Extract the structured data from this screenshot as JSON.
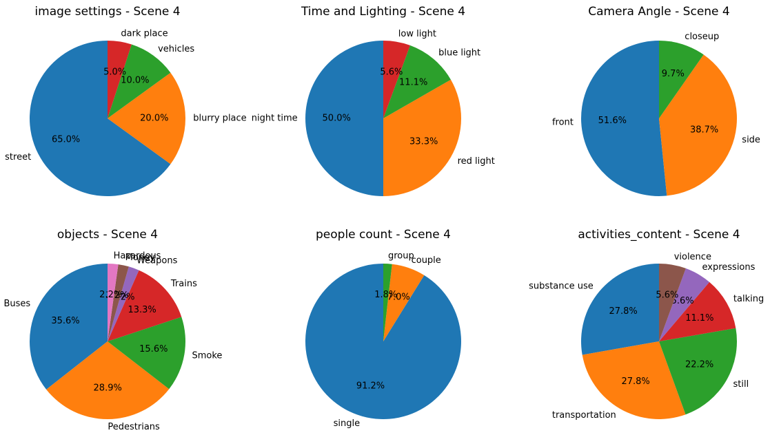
{
  "colors": [
    "#1f77b4",
    "#ff7f0e",
    "#2ca02c",
    "#d62728",
    "#9467bd",
    "#8c564b",
    "#e377c2"
  ],
  "chart_data": [
    {
      "type": "pie",
      "title": "image settings - Scene 4",
      "labels": [
        "street",
        "blurry place",
        "vehicles",
        "dark place"
      ],
      "values": [
        65.0,
        20.0,
        10.0,
        5.0
      ],
      "autopct": [
        "65.0%",
        "20.0%",
        "10.0%",
        "5.0%"
      ],
      "start_angle_deg": 90,
      "direction": "counterclockwise"
    },
    {
      "type": "pie",
      "title": "Time and Lighting - Scene 4",
      "labels": [
        "night time",
        "red light",
        "blue light",
        "low light"
      ],
      "values": [
        50.0,
        33.3,
        11.1,
        5.6
      ],
      "autopct": [
        "50.0%",
        "33.3%",
        "11.1%",
        "5.6%"
      ],
      "start_angle_deg": 90,
      "direction": "counterclockwise"
    },
    {
      "type": "pie",
      "title": "Camera Angle - Scene 4",
      "labels": [
        "front",
        "side",
        "closeup"
      ],
      "values": [
        51.6,
        38.7,
        9.7
      ],
      "autopct": [
        "51.6%",
        "38.7%",
        "9.7%"
      ],
      "start_angle_deg": 90,
      "direction": "counterclockwise"
    },
    {
      "type": "pie",
      "title": "objects - Scene 4",
      "labels": [
        "Buses",
        "Pedestrians",
        "Smoke",
        "Trains",
        "Weapons",
        "Money",
        "Hazardous"
      ],
      "values": [
        35.6,
        28.9,
        15.6,
        13.3,
        2.2,
        2.2,
        2.2
      ],
      "autopct": [
        "35.6%",
        "28.9%",
        "15.6%",
        "13.3%",
        "2.2%",
        "2.2%",
        "2.2%"
      ],
      "start_angle_deg": 90,
      "direction": "counterclockwise"
    },
    {
      "type": "pie",
      "title": "people count - Scene 4",
      "labels": [
        "single",
        "couple",
        "group"
      ],
      "values": [
        91.2,
        7.0,
        1.8
      ],
      "autopct": [
        "91.2%",
        "7.0%",
        "1.8%"
      ],
      "start_angle_deg": 90,
      "direction": "counterclockwise"
    },
    {
      "type": "pie",
      "title": "activities_content - Scene 4",
      "labels": [
        "substance use",
        "transportation",
        "still",
        "talking",
        "expressions",
        "violence"
      ],
      "values": [
        27.8,
        27.8,
        22.2,
        11.1,
        5.6,
        5.6
      ],
      "autopct": [
        "27.8%",
        "27.8%",
        "22.2%",
        "11.1%",
        "5.6%",
        "5.6%"
      ],
      "start_angle_deg": 90,
      "direction": "counterclockwise"
    }
  ]
}
